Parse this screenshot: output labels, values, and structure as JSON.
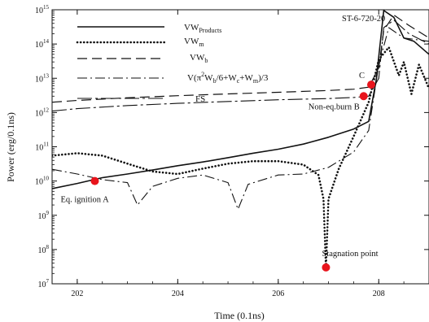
{
  "chart_data": {
    "type": "line",
    "title": "ST-6-720-20",
    "xlabel": "Time (0.1ns)",
    "ylabel": "Power (erg/0.1ns)",
    "xlim": [
      201.5,
      209
    ],
    "ylim_log10": [
      7,
      15
    ],
    "y_scale": "log",
    "x_ticks": [
      202,
      204,
      206,
      208
    ],
    "y_tick_exponents": [
      7,
      8,
      9,
      10,
      11,
      12,
      13,
      14,
      15
    ],
    "grid": false,
    "legend_position": "top-center",
    "series": [
      {
        "name": "VW_Products",
        "legend_main": "VW",
        "legend_sub": "Products",
        "style": "solid",
        "points": [
          [
            201.5,
            6000000000.0
          ],
          [
            202.0,
            8500000000.0
          ],
          [
            202.5,
            12500000000.0
          ],
          [
            203.0,
            16000000000.0
          ],
          [
            203.5,
            21000000000.0
          ],
          [
            204.0,
            28000000000.0
          ],
          [
            204.5,
            36000000000.0
          ],
          [
            205.0,
            48000000000.0
          ],
          [
            205.5,
            65000000000.0
          ],
          [
            206.0,
            85000000000.0
          ],
          [
            206.5,
            120000000000.0
          ],
          [
            207.0,
            190000000000.0
          ],
          [
            207.5,
            330000000000.0
          ],
          [
            207.8,
            550000000000.0
          ],
          [
            207.95,
            9000000000000.0
          ],
          [
            208.1,
            950000000000000.0
          ],
          [
            208.3,
            600000000000000.0
          ],
          [
            208.5,
            150000000000000.0
          ],
          [
            208.7,
            120000000000000.0
          ],
          [
            209.0,
            50000000000000.0
          ]
        ]
      },
      {
        "name": "VW_m",
        "legend_main": "VW",
        "legend_sub": "m",
        "style": "dotted",
        "points": [
          [
            201.5,
            55000000000.0
          ],
          [
            202.0,
            65000000000.0
          ],
          [
            202.5,
            55000000000.0
          ],
          [
            203.0,
            32000000000.0
          ],
          [
            203.5,
            19000000000.0
          ],
          [
            204.0,
            16000000000.0
          ],
          [
            204.5,
            23000000000.0
          ],
          [
            205.0,
            32000000000.0
          ],
          [
            205.5,
            38000000000.0
          ],
          [
            206.0,
            38000000000.0
          ],
          [
            206.5,
            30000000000.0
          ],
          [
            206.8,
            15000000000.0
          ],
          [
            206.9,
            3000000000.0
          ],
          [
            206.95,
            30000000.0
          ],
          [
            207.0,
            3000000000.0
          ],
          [
            207.2,
            22000000000.0
          ],
          [
            207.5,
            200000000000.0
          ],
          [
            207.8,
            2000000000000.0
          ],
          [
            208.0,
            35000000000000.0
          ],
          [
            208.2,
            80000000000000.0
          ],
          [
            208.4,
            12000000000000.0
          ],
          [
            208.5,
            30000000000000.0
          ],
          [
            208.65,
            3500000000000.0
          ],
          [
            208.8,
            25000000000000.0
          ],
          [
            209.0,
            5000000000000.0
          ]
        ]
      },
      {
        "name": "VW_b",
        "legend_main": "VW",
        "legend_sub": "b",
        "style": "dashed",
        "points": [
          [
            201.5,
            2000000000000.0
          ],
          [
            202.0,
            2250000000000.0
          ],
          [
            203.0,
            2700000000000.0
          ],
          [
            204.0,
            3100000000000.0
          ],
          [
            205.0,
            3500000000000.0
          ],
          [
            206.0,
            3900000000000.0
          ],
          [
            207.0,
            4400000000000.0
          ],
          [
            207.5,
            4800000000000.0
          ],
          [
            207.8,
            5500000000000.0
          ],
          [
            208.0,
            20000000000000.0
          ],
          [
            208.1,
            250000000000000.0
          ],
          [
            208.3,
            700000000000000.0
          ],
          [
            208.6,
            350000000000000.0
          ],
          [
            209.0,
            150000000000000.0
          ]
        ]
      },
      {
        "name": "V(π²W_b/6+W_c+W_m)/3",
        "legend_main": "V(π",
        "legend_sup": "2",
        "legend_rest1": "W",
        "legend_sub1": "b",
        "legend_rest2": "/6+W",
        "legend_sub2": "c",
        "legend_rest3": "+W",
        "legend_sub3": "m",
        "legend_rest4": ")/3",
        "style": "dashdot",
        "points": [
          [
            201.5,
            22000000000.0
          ],
          [
            202.0,
            16000000000.0
          ],
          [
            202.5,
            11000000000.0
          ],
          [
            203.0,
            9000000000.0
          ],
          [
            203.2,
            2000000000.0
          ],
          [
            203.5,
            7000000000.0
          ],
          [
            204.0,
            12000000000.0
          ],
          [
            204.5,
            15000000000.0
          ],
          [
            205.0,
            9000000000.0
          ],
          [
            205.2,
            1500000000.0
          ],
          [
            205.4,
            8000000000.0
          ],
          [
            206.0,
            15000000000.0
          ],
          [
            206.5,
            16000000000.0
          ],
          [
            207.0,
            25000000000.0
          ],
          [
            207.5,
            70000000000.0
          ],
          [
            207.8,
            300000000000.0
          ],
          [
            208.0,
            25000000000000.0
          ],
          [
            208.2,
            300000000000000.0
          ],
          [
            208.5,
            150000000000000.0
          ],
          [
            209.0,
            120000000000000.0
          ]
        ]
      },
      {
        "name": "FS",
        "legend_main": "FS",
        "style": "dashdot-long",
        "points": [
          [
            201.5,
            1100000000000.0
          ],
          [
            202.0,
            1300000000000.0
          ],
          [
            203.0,
            1600000000000.0
          ],
          [
            204.0,
            1850000000000.0
          ],
          [
            205.0,
            2100000000000.0
          ],
          [
            206.0,
            2350000000000.0
          ],
          [
            207.0,
            2550000000000.0
          ],
          [
            207.5,
            2750000000000.0
          ],
          [
            207.8,
            3000000000000.0
          ],
          [
            208.0,
            10000000000000.0
          ],
          [
            208.1,
            300000000000000.0
          ],
          [
            208.3,
            500000000000000.0
          ],
          [
            208.6,
            200000000000000.0
          ],
          [
            209.0,
            100000000000000.0
          ]
        ]
      }
    ],
    "annotations": [
      {
        "label": "Eq. ignition A",
        "x": 202.35,
        "y": 10000000000.0
      },
      {
        "label": "Non-eq.burn B",
        "x": 207.7,
        "y": 3000000000000.0
      },
      {
        "label": "C",
        "x": 207.85,
        "y": 6500000000000.0
      },
      {
        "label": "Stagnation point",
        "x": 206.95,
        "y": 30000000.0
      }
    ],
    "marker_color": "#e8141c"
  }
}
